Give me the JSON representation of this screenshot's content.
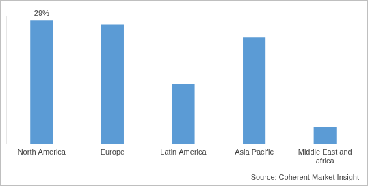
{
  "chart_data": {
    "type": "bar",
    "categories": [
      "North America",
      "Europe",
      "Latin America",
      "Asia Pacific",
      "Middle East and africa"
    ],
    "values": [
      29,
      28,
      14,
      25,
      4
    ],
    "value_labels": [
      "29%",
      null,
      null,
      null,
      null
    ],
    "color": "#5b9bd5",
    "ylim": [
      0,
      30
    ],
    "grid": false,
    "tick_labels": "x",
    "annotations": [
      "Source: Coherent Market Insight"
    ]
  }
}
